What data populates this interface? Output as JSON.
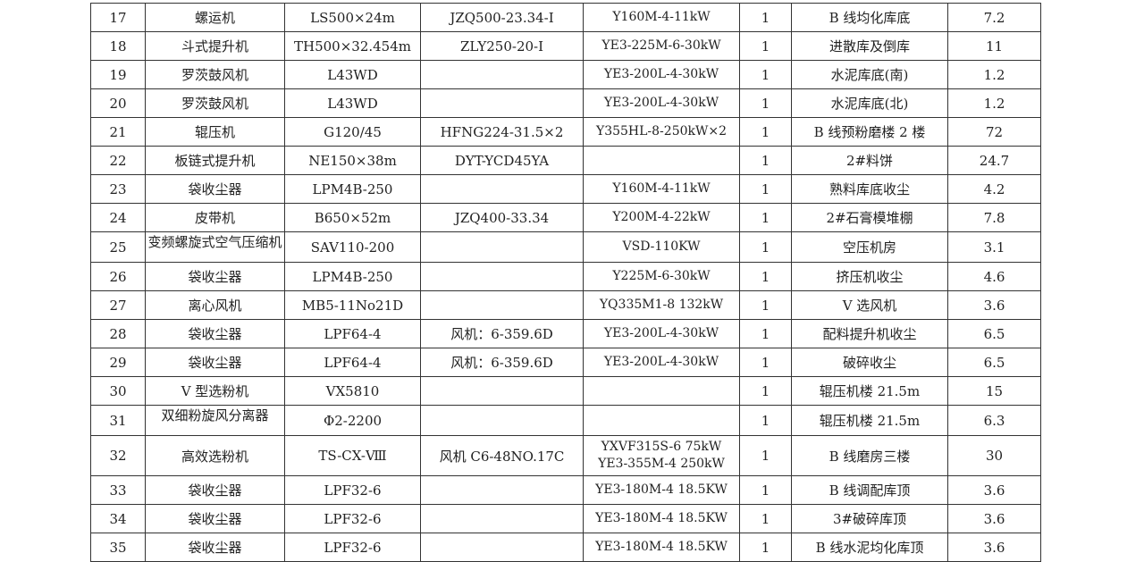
{
  "table": {
    "rows": [
      {
        "no": "17",
        "name": "螺运机",
        "model": "LS500×24m",
        "reducer": "JZQ500-23.34-Ⅰ",
        "motor": [
          "Y160M-4-11kW"
        ],
        "qty": "1",
        "location": "B 线均化库底",
        "value": "7.2"
      },
      {
        "no": "18",
        "name": "斗式提升机",
        "model": "TH500×32.454m",
        "reducer": "ZLY250-20-Ⅰ",
        "motor": [
          "YE3-225M-6-30kW"
        ],
        "qty": "1",
        "location": "进散库及倒库",
        "value": "11"
      },
      {
        "no": "19",
        "name": "罗茨鼓风机",
        "model": "L43WD",
        "reducer": "",
        "motor": [
          "YE3-200L-4-30kW"
        ],
        "qty": "1",
        "location": "水泥库底(南)",
        "value": "1.2"
      },
      {
        "no": "20",
        "name": "罗茨鼓风机",
        "model": "L43WD",
        "reducer": "",
        "motor": [
          "YE3-200L-4-30kW"
        ],
        "qty": "1",
        "location": "水泥库底(北)",
        "value": "1.2"
      },
      {
        "no": "21",
        "name": "辊压机",
        "model": "G120/45",
        "reducer": "HFNG224-31.5×2",
        "motor": [
          "Y355HL-8-250kW×2"
        ],
        "qty": "1",
        "location": "B 线预粉磨楼 2 楼",
        "value": "72"
      },
      {
        "no": "22",
        "name": "板链式提升机",
        "model": "NE150×38m",
        "reducer": "DYT-YCD45YA",
        "motor": [],
        "qty": "1",
        "location": "2#料饼",
        "value": "24.7"
      },
      {
        "no": "23",
        "name": "袋收尘器",
        "model": "LPM4B-250",
        "reducer": "",
        "motor": [
          "Y160M-4-11kW"
        ],
        "qty": "1",
        "location": "熟料库底收尘",
        "value": "4.2"
      },
      {
        "no": "24",
        "name": "皮带机",
        "model": "B650×52m",
        "reducer": "JZQ400-33.34",
        "motor": [
          "Y200M-4-22kW"
        ],
        "qty": "1",
        "location": "2#石膏模堆棚",
        "value": "7.8"
      },
      {
        "no": "25",
        "name": "变频螺旋式空气压缩机",
        "model": "SAV110-200",
        "reducer": "",
        "motor": [
          "VSD-110KW"
        ],
        "qty": "1",
        "location": "空压机房",
        "value": "3.1",
        "clip": true
      },
      {
        "no": "26",
        "name": "袋收尘器",
        "model": "LPM4B-250",
        "reducer": "",
        "motor": [
          "Y225M-6-30kW"
        ],
        "qty": "1",
        "location": "挤压机收尘",
        "value": "4.6"
      },
      {
        "no": "27",
        "name": "离心风机",
        "model": "MB5-11No21D",
        "reducer": "",
        "motor": [
          "YQ335M1-8 132kW"
        ],
        "qty": "1",
        "location": "V 选风机",
        "value": "3.6"
      },
      {
        "no": "28",
        "name": "袋收尘器",
        "model": "LPF64-4",
        "reducer": "风机：6-359.6D",
        "motor": [
          "YE3-200L-4-30kW"
        ],
        "qty": "1",
        "location": "配料提升机收尘",
        "value": "6.5"
      },
      {
        "no": "29",
        "name": "袋收尘器",
        "model": "LPF64-4",
        "reducer": "风机：6-359.6D",
        "motor": [
          "YE3-200L-4-30kW"
        ],
        "qty": "1",
        "location": "破碎收尘",
        "value": "6.5"
      },
      {
        "no": "30",
        "name": "V 型选粉机",
        "model": "VX5810",
        "reducer": "",
        "motor": [],
        "qty": "1",
        "location": "辊压机楼 21.5m",
        "value": "15"
      },
      {
        "no": "31",
        "name": "双细粉旋风分离器",
        "model": "Φ2-2200",
        "reducer": "",
        "motor": [],
        "qty": "1",
        "location": "辊压机楼 21.5m",
        "value": "6.3",
        "clip": true
      },
      {
        "no": "32",
        "name": "高效选粉机",
        "model": "TS-CX-Ⅷ",
        "reducer": "风机 C6-48NO.17C",
        "motor": [
          "YXVF315S-6 75kW",
          "YE3-355M-4 250kW"
        ],
        "qty": "1",
        "location": "B 线磨房三楼",
        "value": "30",
        "tall": true
      },
      {
        "no": "33",
        "name": "袋收尘器",
        "model": "LPF32-6",
        "reducer": "",
        "motor": [
          "YE3-180M-4 18.5KW"
        ],
        "qty": "1",
        "location": "B 线调配库顶",
        "value": "3.6"
      },
      {
        "no": "34",
        "name": "袋收尘器",
        "model": "LPF32-6",
        "reducer": "",
        "motor": [
          "YE3-180M-4 18.5KW"
        ],
        "qty": "1",
        "location": "3#破碎库顶",
        "value": "3.6"
      },
      {
        "no": "35",
        "name": "袋收尘器",
        "model": "LPF32-6",
        "reducer": "",
        "motor": [
          "YE3-180M-4 18.5KW"
        ],
        "qty": "1",
        "location": "B 线水泥均化库顶",
        "value": "3.6"
      }
    ]
  }
}
